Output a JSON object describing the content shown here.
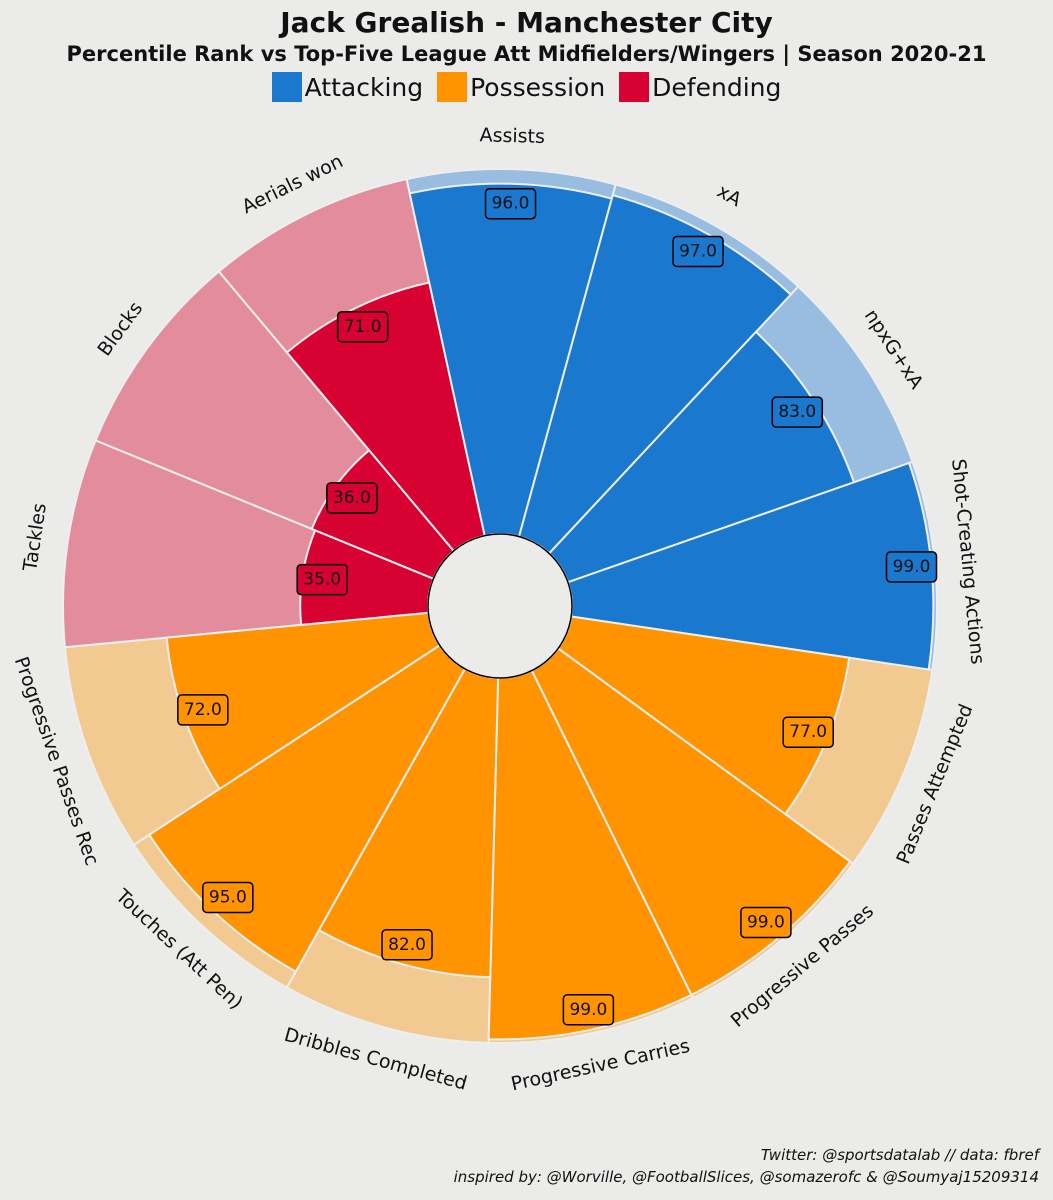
{
  "chart_data": {
    "type": "pizza",
    "title": "Jack Grealish - Manchester City",
    "subtitle": "Percentile Rank vs Top-Five League Att Midfielders/Wingers | Season 2020-21",
    "legend": [
      {
        "name": "Attacking",
        "color": "#1a78cf"
      },
      {
        "name": "Possession",
        "color": "#ff9300"
      },
      {
        "name": "Defending",
        "color": "#d70232"
      }
    ],
    "rlim": [
      0,
      100
    ],
    "categories": [
      "Assists",
      "xA",
      "npxG+xA",
      "Shot-Creating Actions",
      "Passes Attempted",
      "Progressive Passes",
      "Progressive Carries",
      "Dribbles Completed",
      "Touches (Att Pen)",
      "Progressive Passes Rec",
      "Tackles",
      "Blocks",
      "Aerials won"
    ],
    "values": [
      96.0,
      97.0,
      83.0,
      99.0,
      77.0,
      99.0,
      99.0,
      82.0,
      95.0,
      72.0,
      35.0,
      36.0,
      71.0
    ],
    "groups": [
      "Attacking",
      "Attacking",
      "Attacking",
      "Attacking",
      "Possession",
      "Possession",
      "Possession",
      "Possession",
      "Possession",
      "Possession",
      "Defending",
      "Defending",
      "Defending"
    ],
    "value_labels": [
      "96.0",
      "97.0",
      "83.0",
      "99.0",
      "77.0",
      "99.0",
      "99.0",
      "82.0",
      "95.0",
      "72.0",
      "35.0",
      "36.0",
      "71.0"
    ],
    "colors": {
      "Attacking": {
        "fill": "#1a78cf",
        "background": "#98bde0"
      },
      "Possession": {
        "fill": "#ff9300",
        "background": "#f2c990"
      },
      "Defending": {
        "fill": "#d70232",
        "background": "#e38c9c"
      }
    }
  },
  "credits": {
    "line1": "Twitter: @sportsdatalab // data: fbref",
    "line2": "inspired by: @Worville, @FootballSlices, @somazerofc & @Soumyaj15209314"
  }
}
